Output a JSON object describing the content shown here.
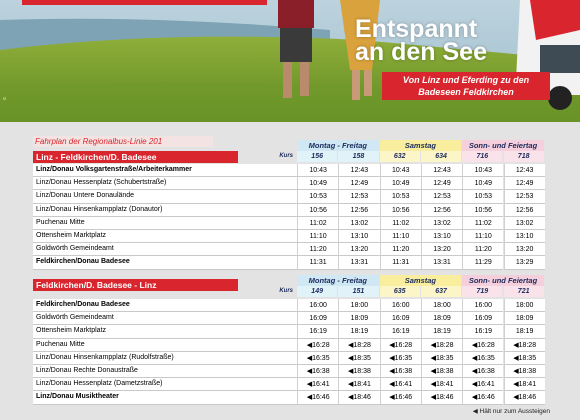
{
  "banner": {
    "title_line1": "Entspannt",
    "title_line2": "an den See",
    "subtitle_line1": "Von Linz und Eferding zu den",
    "subtitle_line2": "Badeseen Feldkirchen"
  },
  "timetable": {
    "caption": "Fahrplan der Regionalbus-Linie 201",
    "kurs_label": "Kurs",
    "day_groups": [
      "Montag - Freitag",
      "Samstag",
      "Sonn- und Feiertag"
    ],
    "sections": [
      {
        "direction": "Linz - Feldkirchen/D. Badesee",
        "kurs": [
          "156",
          "158",
          "632",
          "634",
          "716",
          "718"
        ],
        "rows": [
          {
            "stop": "Linz/Donau Volksgartenstraße/Arbeiterkammer",
            "bold": true,
            "times": [
              "10:43",
              "12:43",
              "10:43",
              "12:43",
              "10:43",
              "12:43"
            ]
          },
          {
            "stop": "Linz/Donau Hessenplatz (Schubertstraße)",
            "bold": false,
            "times": [
              "10:49",
              "12:49",
              "10:49",
              "12:49",
              "10:49",
              "12:49"
            ]
          },
          {
            "stop": "Linz/Donau Untere Donaulände",
            "bold": false,
            "times": [
              "10:53",
              "12:53",
              "10:53",
              "12:53",
              "10:53",
              "12:53"
            ]
          },
          {
            "stop": "Linz/Donau Hinsenkampplatz (Donautor)",
            "bold": false,
            "times": [
              "10:56",
              "12:56",
              "10:56",
              "12:56",
              "10:56",
              "12:56"
            ]
          },
          {
            "stop": "Puchenau Mitte",
            "bold": false,
            "times": [
              "11:02",
              "13:02",
              "11:02",
              "13:02",
              "11:02",
              "13:02"
            ]
          },
          {
            "stop": "Ottensheim Marktplatz",
            "bold": false,
            "times": [
              "11:10",
              "13:10",
              "11:10",
              "13:10",
              "11:10",
              "13:10"
            ]
          },
          {
            "stop": "Goldwörth Gemeindeamt",
            "bold": false,
            "times": [
              "11:20",
              "13:20",
              "11:20",
              "13:20",
              "11:20",
              "13:20"
            ]
          },
          {
            "stop": "Feldkirchen/Donau Badesee",
            "bold": true,
            "times": [
              "11:31",
              "13:31",
              "11:31",
              "13:31",
              "11:29",
              "13:29"
            ]
          }
        ]
      },
      {
        "direction": "Feldkirchen/D. Badesee - Linz",
        "kurs": [
          "149",
          "151",
          "635",
          "637",
          "719",
          "721"
        ],
        "rows": [
          {
            "stop": "Feldkirchen/Donau Badesee",
            "bold": true,
            "times": [
              "16:00",
              "18:00",
              "16:00",
              "18:00",
              "16:00",
              "18:00"
            ]
          },
          {
            "stop": "Goldwörth Gemeindeamt",
            "bold": false,
            "times": [
              "16:09",
              "18:09",
              "16:09",
              "18:09",
              "16:09",
              "18:09"
            ]
          },
          {
            "stop": "Ottensheim Marktplatz",
            "bold": false,
            "times": [
              "16:19",
              "18:19",
              "16:19",
              "18:19",
              "16:19",
              "18:19"
            ]
          },
          {
            "stop": "Puchenau Mitte",
            "bold": false,
            "times": [
              "◀16:28",
              "◀18:28",
              "◀16:28",
              "◀18:28",
              "◀16:28",
              "◀18:28"
            ]
          },
          {
            "stop": "Linz/Donau Hinsenkampplatz (Rudolfstraße)",
            "bold": false,
            "times": [
              "◀16:35",
              "◀18:35",
              "◀16:35",
              "◀18:35",
              "◀16:35",
              "◀18:35"
            ]
          },
          {
            "stop": "Linz/Donau Rechte Donaustraße",
            "bold": false,
            "times": [
              "◀16:38",
              "◀18:38",
              "◀16:38",
              "◀18:38",
              "◀16:38",
              "◀18:38"
            ]
          },
          {
            "stop": "Linz/Donau Hessenplatz (Dametzstraße)",
            "bold": false,
            "times": [
              "◀16:41",
              "◀18:41",
              "◀16:41",
              "◀18:41",
              "◀16:41",
              "◀18:41"
            ]
          },
          {
            "stop": "Linz/Donau Musiktheater",
            "bold": true,
            "times": [
              "◀16:46",
              "◀18:46",
              "◀16:46",
              "◀18:46",
              "◀16:46",
              "◀18:46"
            ]
          }
        ]
      }
    ],
    "footnote": "◀ Hält nur zum Aussteigen"
  }
}
